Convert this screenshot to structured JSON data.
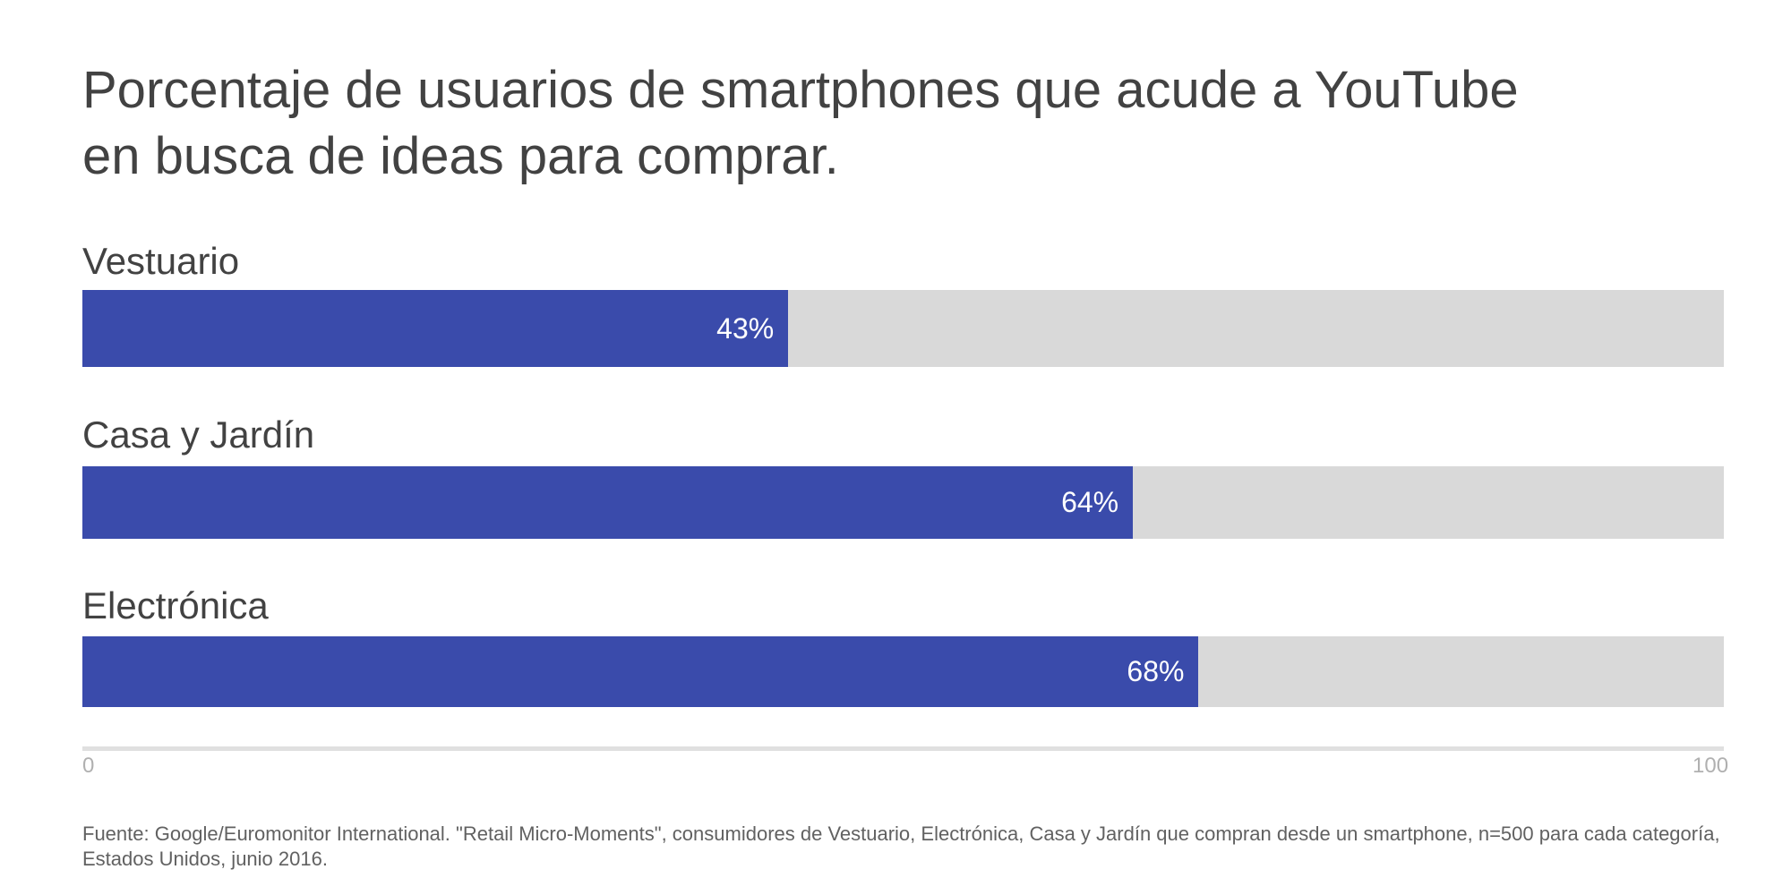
{
  "chart_data": {
    "type": "bar",
    "orientation": "horizontal",
    "title_lines": [
      "Porcentaje de usuarios de smartphones que acude a YouTube",
      "en busca de ideas para comprar."
    ],
    "categories": [
      "Vestuario",
      "Casa y Jardín",
      "Electrónica"
    ],
    "values": [
      43,
      64,
      68
    ],
    "value_labels": [
      "43%",
      "64%",
      "68%"
    ],
    "xlim": [
      0,
      100
    ],
    "x_ticks": [
      "0",
      "100"
    ],
    "bar_color": "#3a4bab",
    "track_color": "#d9d9d9"
  },
  "footnote_lines": [
    "Fuente: Google/Euromonitor International. \"Retail Micro-Moments\", consumidores de Vestuario, Electrónica, Casa y Jardín que compran desde un smartphone, n=500 para cada categoría,",
    "Estados Unidos, junio 2016."
  ]
}
